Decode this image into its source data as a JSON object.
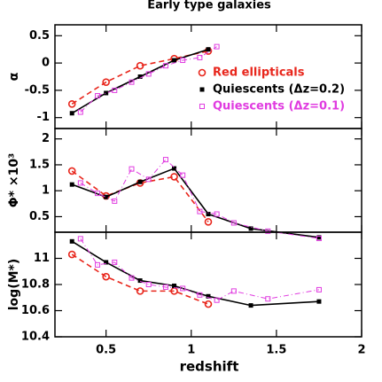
{
  "chart_data": [
    {
      "type": "line",
      "title": "Early type galaxies",
      "ylabel": "α",
      "xlim": [
        0.2,
        2.0
      ],
      "ylim": [
        -1.2,
        0.7
      ],
      "yticks": [
        -1,
        -0.5,
        0,
        0.5
      ],
      "legend": "lower right",
      "series": [
        {
          "name": "Red ellipticals",
          "color": "#e8261c",
          "line_style": "dashed",
          "marker": "circle",
          "x": [
            0.3,
            0.5,
            0.7,
            0.9,
            1.1
          ],
          "values": [
            -0.75,
            -0.35,
            -0.05,
            0.08,
            0.22
          ]
        },
        {
          "name": "Quiescents (Δz=0.2)",
          "color": "#000000",
          "line_style": "solid",
          "marker": "filled-square",
          "x": [
            0.3,
            0.5,
            0.7,
            0.9,
            1.1
          ],
          "values": [
            -0.92,
            -0.55,
            -0.25,
            0.05,
            0.25
          ]
        },
        {
          "name": "Quiescents (Δz=0.1)",
          "color": "#e03ce0",
          "line_style": "dashdot",
          "marker": "square",
          "x": [
            0.35,
            0.45,
            0.55,
            0.65,
            0.75,
            0.85,
            0.95,
            1.05,
            1.15
          ],
          "values": [
            -0.9,
            -0.6,
            -0.5,
            -0.35,
            -0.2,
            -0.05,
            0.05,
            0.1,
            0.3
          ]
        }
      ]
    },
    {
      "type": "line",
      "ylabel": "Φ* ×10³",
      "xlim": [
        0.2,
        2.0
      ],
      "ylim": [
        0.2,
        2.2
      ],
      "yticks": [
        0.5,
        1,
        1.5,
        2
      ],
      "series": [
        {
          "color": "#e8261c",
          "line_style": "dashed",
          "marker": "circle",
          "x": [
            0.3,
            0.5,
            0.7,
            0.9,
            1.1
          ],
          "values": [
            1.38,
            0.9,
            1.15,
            1.27,
            0.4
          ]
        },
        {
          "color": "#000000",
          "line_style": "solid",
          "marker": "filled-square",
          "x": [
            0.3,
            0.5,
            0.7,
            0.9,
            1.1,
            1.35,
            1.75
          ],
          "values": [
            1.12,
            0.88,
            1.17,
            1.43,
            0.55,
            0.27,
            0.1
          ]
        },
        {
          "color": "#e03ce0",
          "line_style": "dashdot",
          "marker": "square",
          "x": [
            0.35,
            0.45,
            0.55,
            0.65,
            0.75,
            0.85,
            0.95,
            1.05,
            1.15,
            1.25,
            1.45,
            1.75
          ],
          "values": [
            1.15,
            0.95,
            0.8,
            1.42,
            1.22,
            1.6,
            1.3,
            0.6,
            0.55,
            0.38,
            0.22,
            0.08
          ]
        }
      ]
    },
    {
      "type": "line",
      "ylabel": "log(M*)",
      "xlabel": "redshift",
      "xlim": [
        0.2,
        2.0
      ],
      "xticks": [
        0.5,
        1,
        1.5,
        2
      ],
      "ylim": [
        10.4,
        11.2
      ],
      "yticks": [
        10.4,
        10.6,
        10.8,
        11
      ],
      "series": [
        {
          "color": "#e8261c",
          "line_style": "dashed",
          "marker": "circle",
          "x": [
            0.3,
            0.5,
            0.7,
            0.9,
            1.1
          ],
          "values": [
            11.03,
            10.86,
            10.75,
            10.75,
            10.65
          ]
        },
        {
          "color": "#000000",
          "line_style": "solid",
          "marker": "filled-square",
          "x": [
            0.3,
            0.5,
            0.7,
            0.9,
            1.1,
            1.35,
            1.75
          ],
          "values": [
            11.13,
            10.97,
            10.83,
            10.79,
            10.71,
            10.64,
            10.67
          ]
        },
        {
          "color": "#e03ce0",
          "line_style": "dashdot",
          "marker": "square",
          "x": [
            0.35,
            0.45,
            0.55,
            0.65,
            0.75,
            0.85,
            0.95,
            1.05,
            1.15,
            1.25,
            1.45,
            1.75
          ],
          "values": [
            11.15,
            10.95,
            10.97,
            10.85,
            10.8,
            10.78,
            10.77,
            10.72,
            10.68,
            10.75,
            10.69,
            10.76
          ]
        }
      ]
    }
  ]
}
